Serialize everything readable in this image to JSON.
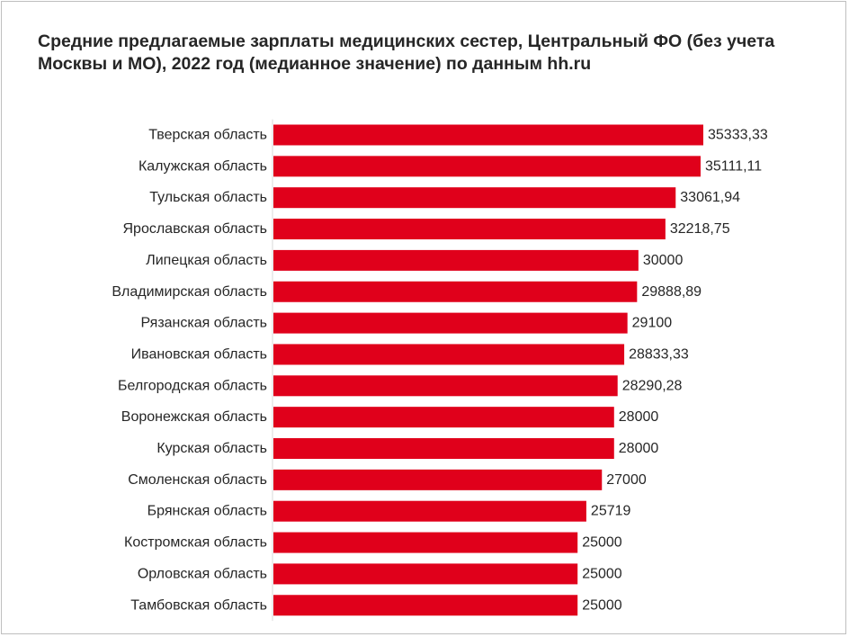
{
  "chart_data": {
    "type": "bar",
    "orientation": "horizontal",
    "title": "Средние предлагаемые зарплаты медицинских сестер, Центральный ФО (без учета Москвы и МО), 2022 год (медианное значение) по данным hh.ru",
    "categories": [
      "Тверская область",
      "Калужская область",
      "Тульская область",
      "Ярославская область",
      "Липецкая область",
      "Владимирская область",
      "Рязанская область",
      "Ивановская область",
      "Белгородская область",
      "Воронежская область",
      "Курская область",
      "Смоленская область",
      "Брянская область",
      "Костромская область",
      "Орловская область",
      "Тамбовская область"
    ],
    "values": [
      35333.33,
      35111.11,
      33061.94,
      32218.75,
      30000,
      29888.89,
      29100,
      28833.33,
      28290.28,
      28000,
      28000,
      27000,
      25719,
      25000,
      25000,
      25000
    ],
    "value_labels": [
      "35333,33",
      "35111,11",
      "33061,94",
      "32218,75",
      "30000",
      "29888,89",
      "29100",
      "28833,33",
      "28290,28",
      "28000",
      "28000",
      "27000",
      "25719",
      "25000",
      "25000",
      "25000"
    ],
    "xlim": [
      0,
      35333.33
    ],
    "bar_color": "#e0001b",
    "axis_color": "#d9d9d9",
    "grid": false,
    "legend": "none"
  }
}
